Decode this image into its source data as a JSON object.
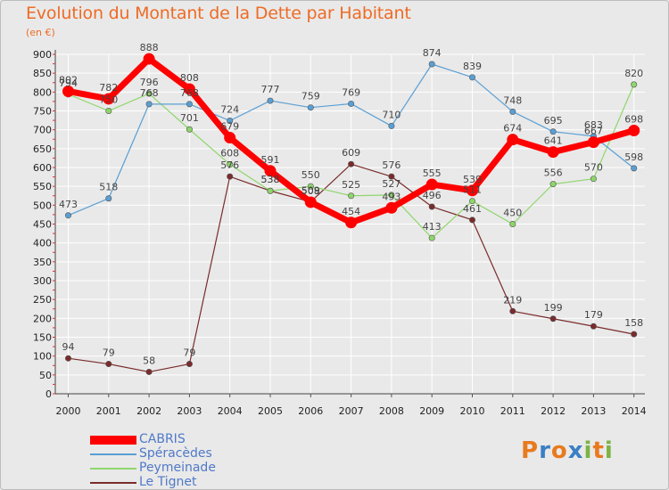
{
  "header": {
    "title": "Evolution du Montant de la Dette par Habitant",
    "subtitle": "(en €)"
  },
  "logo": {
    "text": "Proxiti",
    "letters": [
      {
        "ch": "P",
        "color": "#e87a1e"
      },
      {
        "ch": "r",
        "color": "#3b7fc4"
      },
      {
        "ch": "o",
        "color": "#e87a1e"
      },
      {
        "ch": "x",
        "color": "#3b7fc4"
      },
      {
        "ch": "i",
        "color": "#7cb342"
      },
      {
        "ch": "t",
        "color": "#e87a1e"
      },
      {
        "ch": "i",
        "color": "#7cb342"
      }
    ]
  },
  "chart_data": {
    "type": "line",
    "title": "Evolution du Montant de la Dette par Habitant",
    "subtitle": "(en €)",
    "xlabel": "",
    "ylabel": "",
    "x": [
      "2000",
      "2001",
      "2002",
      "2003",
      "2004",
      "2005",
      "2006",
      "2007",
      "2008",
      "2009",
      "2010",
      "2011",
      "2012",
      "2013",
      "2014"
    ],
    "ylim": [
      0,
      900
    ],
    "yticks": [
      0,
      50,
      100,
      150,
      200,
      250,
      300,
      350,
      400,
      450,
      500,
      550,
      600,
      650,
      700,
      750,
      800,
      850,
      900
    ],
    "grid": true,
    "legend": "bottom-left",
    "series": [
      {
        "name": "CABRIS",
        "color": "#ff0000",
        "values": [
          802,
          782,
          888,
          808,
          679,
          591,
          508,
          454,
          493,
          555,
          539,
          674,
          641,
          667,
          698
        ]
      },
      {
        "name": "Spéracèdes",
        "color": "#5a9fd4",
        "values": [
          473,
          518,
          768,
          768,
          724,
          777,
          759,
          769,
          710,
          874,
          839,
          748,
          695,
          683,
          598
        ]
      },
      {
        "name": "Peymeinade",
        "color": "#8ed66b",
        "values": [
          794,
          750,
          796,
          701,
          608,
          538,
          550,
          525,
          527,
          413,
          511,
          450,
          556,
          570,
          820
        ]
      },
      {
        "name": "Le Tignet",
        "color": "#7a2b2b",
        "values": [
          94,
          79,
          58,
          79,
          576,
          538,
          509,
          609,
          576,
          496,
          461,
          219,
          199,
          179,
          158
        ]
      }
    ],
    "value_labels": [
      [
        {
          "x": "2000",
          "text": "802"
        },
        {
          "x": "2001",
          "text": "782"
        },
        {
          "x": "2002",
          "text": "888"
        },
        {
          "x": "2003",
          "text": "808"
        },
        {
          "x": "2004",
          "text": "679"
        },
        {
          "x": "2005",
          "text": "591"
        },
        {
          "x": "2006",
          "text": "508"
        },
        {
          "x": "2007",
          "text": "454"
        },
        {
          "x": "2008",
          "text": "493"
        },
        {
          "x": "2009",
          "text": "555"
        },
        {
          "x": "2010",
          "text": "539"
        },
        {
          "x": "2011",
          "text": "674"
        },
        {
          "x": "2012",
          "text": "641"
        },
        {
          "x": "2013",
          "text": "667"
        },
        {
          "x": "2014",
          "text": "698"
        }
      ],
      [
        {
          "x": "2000",
          "text": "473"
        },
        {
          "x": "2001",
          "text": "518"
        },
        {
          "x": "2002",
          "text": "768"
        },
        {
          "x": "2003",
          "text": "768"
        },
        {
          "x": "2004",
          "text": "724"
        },
        {
          "x": "2005",
          "text": "777"
        },
        {
          "x": "2006",
          "text": "759"
        },
        {
          "x": "2007",
          "text": "769"
        },
        {
          "x": "2008",
          "text": "710"
        },
        {
          "x": "2009",
          "text": "874"
        },
        {
          "x": "2010",
          "text": "839"
        },
        {
          "x": "2011",
          "text": "748"
        },
        {
          "x": "2012",
          "text": "695"
        },
        {
          "x": "2013",
          "text": "683"
        },
        {
          "x": "2014",
          "text": "598"
        }
      ],
      [
        {
          "x": "2000",
          "text": "794"
        },
        {
          "x": "2001",
          "text": "750"
        },
        {
          "x": "2002",
          "text": "796"
        },
        {
          "x": "2003",
          "text": "701"
        },
        {
          "x": "2004",
          "text": "608"
        },
        {
          "x": "2005",
          "text": "538"
        },
        {
          "x": "2006",
          "text": "550"
        },
        {
          "x": "2007",
          "text": "525"
        },
        {
          "x": "2008",
          "text": "527"
        },
        {
          "x": "2009",
          "text": "413"
        },
        {
          "x": "2010",
          "text": "511"
        },
        {
          "x": "2011",
          "text": "450"
        },
        {
          "x": "2012",
          "text": "556"
        },
        {
          "x": "2013",
          "text": "570"
        },
        {
          "x": "2014",
          "text": "820"
        }
      ],
      [
        {
          "x": "2000",
          "text": "94"
        },
        {
          "x": "2001",
          "text": "79"
        },
        {
          "x": "2002",
          "text": "58"
        },
        {
          "x": "2003",
          "text": "79"
        },
        {
          "x": "2004",
          "text": "576"
        },
        {
          "x": "2005",
          "text": "538"
        },
        {
          "x": "2006",
          "text": "509"
        },
        {
          "x": "2007",
          "text": "609"
        },
        {
          "x": "2008",
          "text": "576"
        },
        {
          "x": "2009",
          "text": "496"
        },
        {
          "x": "2010",
          "text": "461"
        },
        {
          "x": "2011",
          "text": "219"
        },
        {
          "x": "2012",
          "text": "199"
        },
        {
          "x": "2013",
          "text": "179"
        },
        {
          "x": "2014",
          "text": "158"
        }
      ]
    ]
  }
}
